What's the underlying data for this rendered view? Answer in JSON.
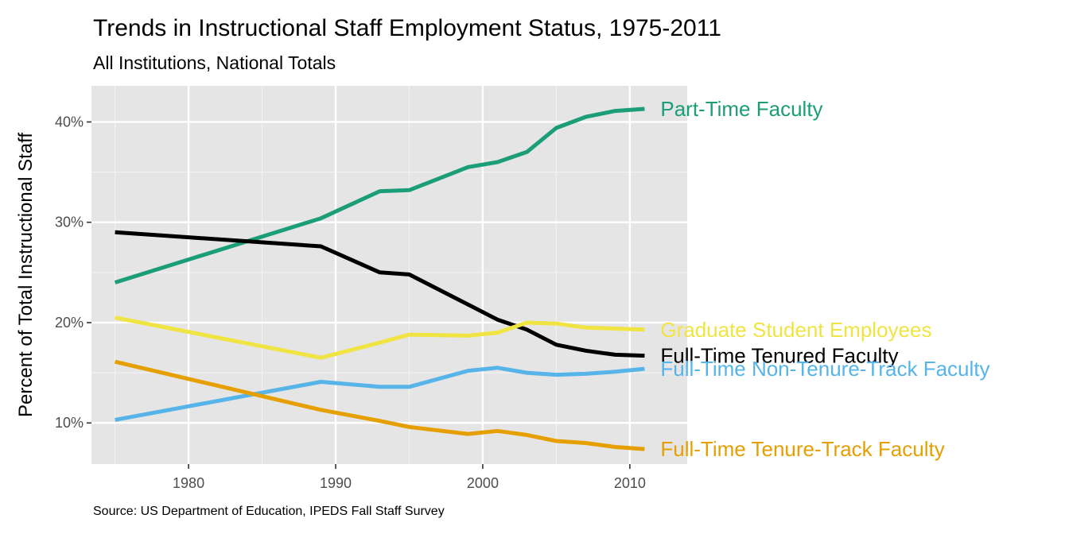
{
  "chart_data": {
    "type": "line",
    "title": "Trends in Instructional Staff Employment Status, 1975-2011",
    "subtitle": "All Institutions, National Totals",
    "xlabel": "",
    "ylabel": "Percent of Total Instructional Staff",
    "caption": "Source: US Department of Education, IPEDS Fall Staff Survey",
    "x": [
      1975,
      1989,
      1993,
      1995,
      1999,
      2001,
      2003,
      2005,
      2007,
      2009,
      2011
    ],
    "xlim": [
      1973.4,
      2013.9
    ],
    "ylim": [
      5.9,
      43.6
    ],
    "xticks": [
      1980,
      1990,
      2000,
      2010
    ],
    "yticks": [
      10,
      20,
      30,
      40
    ],
    "ytick_labels": [
      "10%",
      "20%",
      "30%",
      "40%"
    ],
    "grid": true,
    "legend": "direct labels at line ends",
    "series": [
      {
        "name": "Part-Time Faculty",
        "color": "#1b9e77",
        "values": [
          24.0,
          30.4,
          33.1,
          33.2,
          35.5,
          36.0,
          37.0,
          39.4,
          40.5,
          41.1,
          41.3
        ]
      },
      {
        "name": "Full-Time Tenured Faculty",
        "color": "#000000",
        "values": [
          29.0,
          27.6,
          25.0,
          24.8,
          21.8,
          20.3,
          19.3,
          17.8,
          17.2,
          16.8,
          16.7
        ]
      },
      {
        "name": "Graduate Student Employees",
        "color": "#f0e442",
        "values": [
          20.5,
          16.5,
          18.0,
          18.8,
          18.7,
          19.0,
          20.0,
          19.9,
          19.5,
          19.4,
          19.3
        ]
      },
      {
        "name": "Full-Time Non-Tenure-Track Faculty",
        "color": "#56b4e9",
        "values": [
          10.3,
          14.1,
          13.6,
          13.6,
          15.2,
          15.5,
          15.0,
          14.8,
          14.9,
          15.1,
          15.4
        ]
      },
      {
        "name": "Full-Time Tenure-Track Faculty",
        "color": "#e69f00",
        "values": [
          16.1,
          11.3,
          10.2,
          9.6,
          8.9,
          9.2,
          8.8,
          8.2,
          8.0,
          7.6,
          7.4
        ]
      }
    ]
  }
}
